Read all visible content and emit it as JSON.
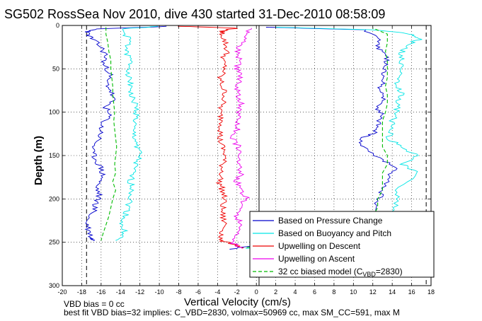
{
  "chart_data": {
    "type": "line",
    "title": "SG502 RossSea Nov 2010, dive 430 started 31-Dec-2010 08:58:09",
    "xlabel": "Vertical Velocity (cm/s)",
    "ylabel": "Depth (m)",
    "xlim": [
      -20,
      18
    ],
    "ylim": [
      0,
      300
    ],
    "y_reversed": true,
    "grid": true,
    "legend_position": "bottom-right",
    "xticks": [
      "-20",
      "-18",
      "-16",
      "-14",
      "-12",
      "-10",
      "-8",
      "-6",
      "-4",
      "-2",
      "0",
      "2",
      "4",
      "6",
      "8",
      "10",
      "12",
      "14",
      "16",
      "18"
    ],
    "yticks": [
      "0",
      "50",
      "100",
      "150",
      "200",
      "250",
      "300"
    ],
    "vlines": [
      -17.5,
      17.5
    ],
    "series": [
      {
        "name": "Based on Pressure Change",
        "color": "#0000cc",
        "style": "solid",
        "descent": [
          [
            -9,
            1
          ],
          [
            -16.5,
            4
          ],
          [
            -17.5,
            8
          ],
          [
            -17,
            15
          ],
          [
            -16,
            25
          ],
          [
            -15.5,
            35
          ],
          [
            -15.8,
            45
          ],
          [
            -15,
            55
          ],
          [
            -15.5,
            65
          ],
          [
            -15,
            75
          ],
          [
            -14.8,
            85
          ],
          [
            -15.5,
            95
          ],
          [
            -15.2,
            105
          ],
          [
            -16,
            115
          ],
          [
            -16,
            125
          ],
          [
            -16.5,
            135
          ],
          [
            -17,
            145
          ],
          [
            -16.5,
            155
          ],
          [
            -16,
            165
          ],
          [
            -15.8,
            175
          ],
          [
            -16.5,
            185
          ],
          [
            -16.2,
            195
          ],
          [
            -16.5,
            205
          ],
          [
            -16.8,
            215
          ],
          [
            -17.5,
            225
          ],
          [
            -17.3,
            235
          ],
          [
            -17,
            245
          ],
          [
            -16.8,
            248
          ]
        ],
        "ascent": [
          [
            -3,
            258
          ],
          [
            1,
            252
          ],
          [
            8,
            250
          ],
          [
            11,
            247
          ],
          [
            12.5,
            235
          ],
          [
            12,
            220
          ],
          [
            12.5,
            205
          ],
          [
            13,
            190
          ],
          [
            13.5,
            175
          ],
          [
            14.5,
            165
          ],
          [
            13,
            155
          ],
          [
            11,
            140
          ],
          [
            10.5,
            130
          ],
          [
            12,
            125
          ],
          [
            12.5,
            115
          ],
          [
            13,
            105
          ],
          [
            12.5,
            95
          ],
          [
            13,
            85
          ],
          [
            12.8,
            75
          ],
          [
            13,
            65
          ],
          [
            13,
            55
          ],
          [
            13.5,
            45
          ],
          [
            13.5,
            35
          ],
          [
            12.5,
            25
          ],
          [
            12.5,
            15
          ],
          [
            11,
            5
          ],
          [
            1,
            2
          ]
        ]
      },
      {
        "name": "Based on Buoyancy and Pitch",
        "color": "#00e5e5",
        "style": "solid",
        "descent": [
          [
            -10,
            1
          ],
          [
            -14,
            4
          ],
          [
            -13.5,
            10
          ],
          [
            -13,
            20
          ],
          [
            -13.5,
            30
          ],
          [
            -13,
            40
          ],
          [
            -13,
            50
          ],
          [
            -13.2,
            60
          ],
          [
            -12.8,
            70
          ],
          [
            -13,
            80
          ],
          [
            -12.5,
            90
          ],
          [
            -12.3,
            100
          ],
          [
            -12.5,
            110
          ],
          [
            -12.8,
            120
          ],
          [
            -12.5,
            130
          ],
          [
            -12.2,
            140
          ],
          [
            -12,
            150
          ],
          [
            -12.5,
            160
          ],
          [
            -12.8,
            170
          ],
          [
            -13,
            180
          ],
          [
            -12.7,
            190
          ],
          [
            -13,
            200
          ],
          [
            -13.2,
            210
          ],
          [
            -13.5,
            220
          ],
          [
            -14,
            230
          ],
          [
            -13.5,
            240
          ],
          [
            -14.5,
            248
          ]
        ],
        "ascent": [
          [
            -1,
            257
          ],
          [
            2,
            253
          ],
          [
            8,
            250
          ],
          [
            12,
            247
          ],
          [
            13.5,
            235
          ],
          [
            14,
            220
          ],
          [
            14.5,
            205
          ],
          [
            14.5,
            190
          ],
          [
            16.5,
            170
          ],
          [
            15,
            160
          ],
          [
            16.5,
            150
          ],
          [
            15,
            140
          ],
          [
            13.5,
            130
          ],
          [
            14,
            120
          ],
          [
            14,
            110
          ],
          [
            14.5,
            100
          ],
          [
            14.5,
            90
          ],
          [
            15,
            80
          ],
          [
            14.5,
            70
          ],
          [
            14.5,
            60
          ],
          [
            15,
            50
          ],
          [
            15,
            40
          ],
          [
            15,
            30
          ],
          [
            15.5,
            22
          ],
          [
            17,
            15
          ],
          [
            16,
            10
          ],
          [
            12,
            5
          ],
          [
            2,
            2
          ]
        ]
      },
      {
        "name": "Upwelling on Descent",
        "color": "#ee0000",
        "style": "solid",
        "points": [
          [
            -8,
            1
          ],
          [
            -2,
            3
          ],
          [
            -3.5,
            6
          ],
          [
            -3.5,
            10
          ],
          [
            -3.2,
            20
          ],
          [
            -3,
            30
          ],
          [
            -3.5,
            40
          ],
          [
            -3.2,
            50
          ],
          [
            -3.8,
            60
          ],
          [
            -3.5,
            70
          ],
          [
            -3.2,
            80
          ],
          [
            -3.5,
            90
          ],
          [
            -3.8,
            100
          ],
          [
            -3.5,
            110
          ],
          [
            -3.6,
            120
          ],
          [
            -3.8,
            130
          ],
          [
            -3.5,
            140
          ],
          [
            -3.2,
            150
          ],
          [
            -3.5,
            160
          ],
          [
            -3.5,
            170
          ],
          [
            -3.8,
            180
          ],
          [
            -3.5,
            190
          ],
          [
            -3.3,
            200
          ],
          [
            -3.5,
            210
          ],
          [
            -3.5,
            220
          ],
          [
            -3.2,
            230
          ],
          [
            -3.5,
            240
          ],
          [
            -3.8,
            248
          ],
          [
            -2,
            253
          ],
          [
            -1.5,
            257
          ]
        ]
      },
      {
        "name": "Upwelling on Ascent",
        "color": "#ee00ee",
        "style": "solid",
        "points": [
          [
            -1.5,
            257
          ],
          [
            -2.5,
            250
          ],
          [
            -2,
            240
          ],
          [
            -1.5,
            230
          ],
          [
            -2,
            220
          ],
          [
            -1.8,
            210
          ],
          [
            -1,
            200
          ],
          [
            -1.5,
            190
          ],
          [
            -2,
            180
          ],
          [
            -1.5,
            170
          ],
          [
            -2,
            160
          ],
          [
            -1.5,
            150
          ],
          [
            -1.8,
            140
          ],
          [
            -2.5,
            130
          ],
          [
            -2,
            120
          ],
          [
            -1.8,
            110
          ],
          [
            -2,
            100
          ],
          [
            -1.5,
            90
          ],
          [
            -1.8,
            80
          ],
          [
            -2.2,
            70
          ],
          [
            -1.5,
            60
          ],
          [
            -2,
            50
          ],
          [
            -1.8,
            40
          ],
          [
            -2,
            30
          ],
          [
            -1.5,
            20
          ],
          [
            -1,
            10
          ],
          [
            -0.5,
            3
          ]
        ]
      },
      {
        "name": "32 cc biased model (C_VBD=2830)",
        "color": "#00bb00",
        "style": "dashed",
        "descent": [
          [
            -15.5,
            2
          ],
          [
            -15.5,
            10
          ],
          [
            -15.3,
            20
          ],
          [
            -15.2,
            30
          ],
          [
            -15,
            40
          ],
          [
            -15,
            50
          ],
          [
            -14.9,
            60
          ],
          [
            -14.8,
            70
          ],
          [
            -14.8,
            80
          ],
          [
            -14.7,
            90
          ],
          [
            -14.6,
            100
          ],
          [
            -14.7,
            110
          ],
          [
            -14.6,
            120
          ],
          [
            -14.5,
            130
          ],
          [
            -14.4,
            140
          ],
          [
            -14.5,
            150
          ],
          [
            -14.6,
            160
          ],
          [
            -14.5,
            170
          ],
          [
            -14.8,
            180
          ],
          [
            -14.5,
            190
          ],
          [
            -14.8,
            200
          ],
          [
            -15,
            210
          ],
          [
            -15.2,
            220
          ],
          [
            -15.5,
            230
          ],
          [
            -15.8,
            240
          ],
          [
            -16,
            248
          ]
        ],
        "ascent": [
          [
            -1,
            256
          ],
          [
            8,
            250
          ],
          [
            11.5,
            248
          ],
          [
            11.5,
            240
          ],
          [
            12,
            230
          ],
          [
            12,
            220
          ],
          [
            12.5,
            210
          ],
          [
            12.5,
            200
          ],
          [
            13,
            190
          ],
          [
            13,
            180
          ],
          [
            13,
            170
          ],
          [
            13.5,
            160
          ],
          [
            13.5,
            150
          ],
          [
            13,
            140
          ],
          [
            13,
            130
          ],
          [
            13,
            120
          ],
          [
            13,
            110
          ],
          [
            13.3,
            100
          ],
          [
            13.5,
            90
          ],
          [
            13.5,
            80
          ],
          [
            13.3,
            70
          ],
          [
            13.5,
            60
          ],
          [
            13.5,
            50
          ],
          [
            13.5,
            40
          ],
          [
            13.3,
            30
          ],
          [
            13.5,
            20
          ],
          [
            13.5,
            10
          ],
          [
            12,
            3
          ]
        ]
      }
    ],
    "legend": [
      {
        "label": "Based on Pressure Change",
        "color": "#0000cc",
        "dash": false
      },
      {
        "label": "Based on Buoyancy and Pitch",
        "color": "#00e5e5",
        "dash": false
      },
      {
        "label": "Upwelling on Descent",
        "color": "#ee0000",
        "dash": false
      },
      {
        "label": "Upwelling on Ascent",
        "color": "#ee00ee",
        "dash": false
      },
      {
        "label": "32 cc biased model (C",
        "sub": "VBD",
        "tail": "=2830)",
        "color": "#00bb00",
        "dash": true
      }
    ]
  },
  "footer": {
    "line1": "VBD bias = 0 cc",
    "line2": "best fit VBD bias=32 implies: C_VBD=2830, volmax=50969 cc, max SM_CC=591, max M"
  }
}
